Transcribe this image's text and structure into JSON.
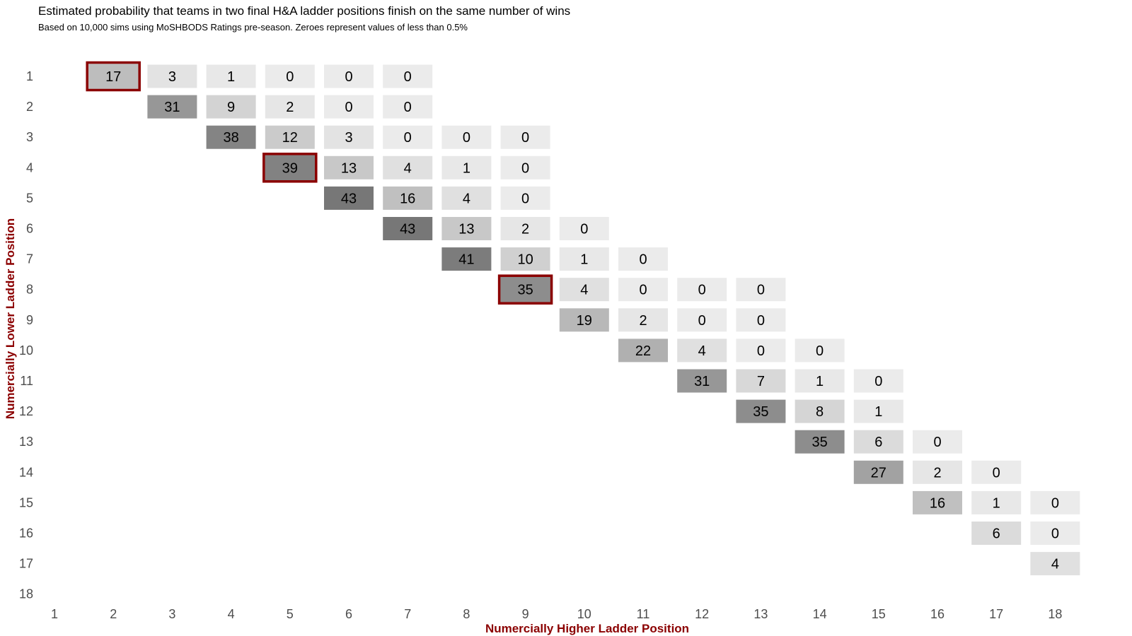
{
  "title": "Estimated probability that teams in two final H&A ladder positions finish on the same number of wins",
  "subtitle": "Based on 10,000 sims using MoSHBODS Ratings pre-season. Zeroes represent values of less than 0.5%",
  "chart_data": {
    "type": "heatmap",
    "xlabel": "Numercially Higher Ladder Position",
    "ylabel": "Numercially Lower Ladder Position",
    "x_ticks": [
      "1",
      "2",
      "3",
      "4",
      "5",
      "6",
      "7",
      "8",
      "9",
      "10",
      "11",
      "12",
      "13",
      "14",
      "15",
      "16",
      "17",
      "18"
    ],
    "y_ticks": [
      "1",
      "2",
      "3",
      "4",
      "5",
      "6",
      "7",
      "8",
      "9",
      "10",
      "11",
      "12",
      "13",
      "14",
      "15",
      "16",
      "17",
      "18"
    ],
    "fill_scale": {
      "low_color": "#ebebeb",
      "high_color": "#777777",
      "min": 0,
      "max": 43
    },
    "highlight_color": "#8b0000",
    "cells": [
      {
        "row": 1,
        "col": 2,
        "value": 17,
        "highlight": true
      },
      {
        "row": 1,
        "col": 3,
        "value": 3
      },
      {
        "row": 1,
        "col": 4,
        "value": 1
      },
      {
        "row": 1,
        "col": 5,
        "value": 0
      },
      {
        "row": 1,
        "col": 6,
        "value": 0
      },
      {
        "row": 1,
        "col": 7,
        "value": 0
      },
      {
        "row": 2,
        "col": 3,
        "value": 31
      },
      {
        "row": 2,
        "col": 4,
        "value": 9
      },
      {
        "row": 2,
        "col": 5,
        "value": 2
      },
      {
        "row": 2,
        "col": 6,
        "value": 0
      },
      {
        "row": 2,
        "col": 7,
        "value": 0
      },
      {
        "row": 3,
        "col": 4,
        "value": 38
      },
      {
        "row": 3,
        "col": 5,
        "value": 12
      },
      {
        "row": 3,
        "col": 6,
        "value": 3
      },
      {
        "row": 3,
        "col": 7,
        "value": 0
      },
      {
        "row": 3,
        "col": 8,
        "value": 0
      },
      {
        "row": 3,
        "col": 9,
        "value": 0
      },
      {
        "row": 4,
        "col": 5,
        "value": 39,
        "highlight": true
      },
      {
        "row": 4,
        "col": 6,
        "value": 13
      },
      {
        "row": 4,
        "col": 7,
        "value": 4
      },
      {
        "row": 4,
        "col": 8,
        "value": 1
      },
      {
        "row": 4,
        "col": 9,
        "value": 0
      },
      {
        "row": 5,
        "col": 6,
        "value": 43
      },
      {
        "row": 5,
        "col": 7,
        "value": 16
      },
      {
        "row": 5,
        "col": 8,
        "value": 4
      },
      {
        "row": 5,
        "col": 9,
        "value": 0
      },
      {
        "row": 6,
        "col": 7,
        "value": 43
      },
      {
        "row": 6,
        "col": 8,
        "value": 13
      },
      {
        "row": 6,
        "col": 9,
        "value": 2
      },
      {
        "row": 6,
        "col": 10,
        "value": 0
      },
      {
        "row": 7,
        "col": 8,
        "value": 41
      },
      {
        "row": 7,
        "col": 9,
        "value": 10
      },
      {
        "row": 7,
        "col": 10,
        "value": 1
      },
      {
        "row": 7,
        "col": 11,
        "value": 0
      },
      {
        "row": 8,
        "col": 9,
        "value": 35,
        "highlight": true
      },
      {
        "row": 8,
        "col": 10,
        "value": 4
      },
      {
        "row": 8,
        "col": 11,
        "value": 0
      },
      {
        "row": 8,
        "col": 12,
        "value": 0
      },
      {
        "row": 8,
        "col": 13,
        "value": 0
      },
      {
        "row": 9,
        "col": 10,
        "value": 19
      },
      {
        "row": 9,
        "col": 11,
        "value": 2
      },
      {
        "row": 9,
        "col": 12,
        "value": 0
      },
      {
        "row": 9,
        "col": 13,
        "value": 0
      },
      {
        "row": 10,
        "col": 11,
        "value": 22
      },
      {
        "row": 10,
        "col": 12,
        "value": 4
      },
      {
        "row": 10,
        "col": 13,
        "value": 0
      },
      {
        "row": 10,
        "col": 14,
        "value": 0
      },
      {
        "row": 11,
        "col": 12,
        "value": 31
      },
      {
        "row": 11,
        "col": 13,
        "value": 7
      },
      {
        "row": 11,
        "col": 14,
        "value": 1
      },
      {
        "row": 11,
        "col": 15,
        "value": 0
      },
      {
        "row": 12,
        "col": 13,
        "value": 35
      },
      {
        "row": 12,
        "col": 14,
        "value": 8
      },
      {
        "row": 12,
        "col": 15,
        "value": 1
      },
      {
        "row": 13,
        "col": 14,
        "value": 35
      },
      {
        "row": 13,
        "col": 15,
        "value": 6
      },
      {
        "row": 13,
        "col": 16,
        "value": 0
      },
      {
        "row": 14,
        "col": 15,
        "value": 27
      },
      {
        "row": 14,
        "col": 16,
        "value": 2
      },
      {
        "row": 14,
        "col": 17,
        "value": 0
      },
      {
        "row": 15,
        "col": 16,
        "value": 16
      },
      {
        "row": 15,
        "col": 17,
        "value": 1
      },
      {
        "row": 15,
        "col": 18,
        "value": 0
      },
      {
        "row": 16,
        "col": 17,
        "value": 6
      },
      {
        "row": 16,
        "col": 18,
        "value": 0
      },
      {
        "row": 17,
        "col": 18,
        "value": 4
      }
    ]
  }
}
